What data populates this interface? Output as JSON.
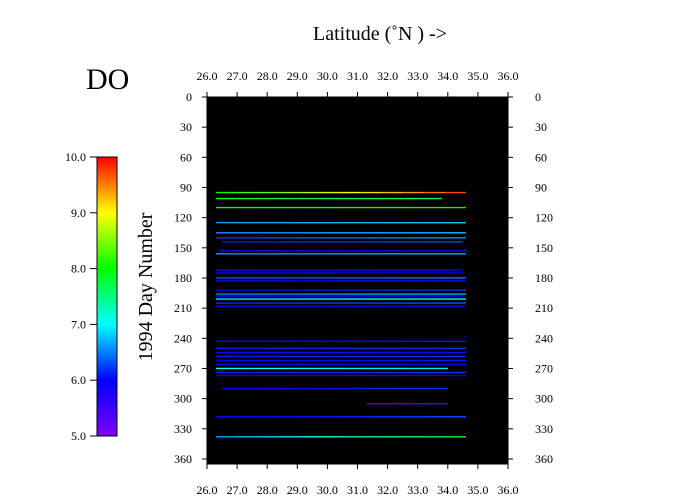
{
  "chart_data": {
    "type": "line",
    "title": "DO",
    "xlabel": "Latitude  (˚N )  ->",
    "ylabel": "1994  Day Number",
    "xlim": [
      26.0,
      36.0
    ],
    "ylim": [
      0,
      365
    ],
    "y_reversed": true,
    "background": "#000000",
    "xticks": [
      "26.0",
      "27.0",
      "28.0",
      "29.0",
      "30.0",
      "31.0",
      "32.0",
      "33.0",
      "34.0",
      "35.0",
      "36.0"
    ],
    "yticks": [
      "0",
      "30",
      "60",
      "90",
      "120",
      "150",
      "180",
      "210",
      "240",
      "270",
      "300",
      "330",
      "360"
    ],
    "colorbar": {
      "label": "DO",
      "range": [
        5.0,
        10.0
      ],
      "ticks": [
        "5.0",
        "6.0",
        "7.0",
        "8.0",
        "9.0",
        "10.0"
      ],
      "colormap": [
        "#8000ff",
        "#0000ff",
        "#00ffff",
        "#00ff00",
        "#ffff00",
        "#ff0000"
      ]
    },
    "series": [
      {
        "day": 95,
        "x_start": 26.3,
        "x_end": 34.6,
        "do_start": 8.0,
        "do_end": 9.8
      },
      {
        "day": 101,
        "x_start": 26.3,
        "x_end": 33.8,
        "do_start": 7.8,
        "do_end": 7.6
      },
      {
        "day": 110,
        "x_start": 26.3,
        "x_end": 34.6,
        "do_start": 7.9,
        "do_end": 8.0
      },
      {
        "day": 125,
        "x_start": 26.3,
        "x_end": 34.6,
        "do_start": 6.6,
        "do_end": 6.8
      },
      {
        "day": 135,
        "x_start": 26.3,
        "x_end": 34.6,
        "do_start": 6.5,
        "do_end": 6.7
      },
      {
        "day": 140,
        "x_start": 26.3,
        "x_end": 34.6,
        "do_start": 6.2,
        "do_end": 6.6
      },
      {
        "day": 144,
        "x_start": 26.5,
        "x_end": 34.5,
        "do_start": 6.1,
        "do_end": 6.3
      },
      {
        "day": 153,
        "x_start": 26.4,
        "x_end": 34.6,
        "do_start": 5.7,
        "do_end": 5.7
      },
      {
        "day": 156,
        "x_start": 26.3,
        "x_end": 34.6,
        "do_start": 6.6,
        "do_end": 6.7
      },
      {
        "day": 172,
        "x_start": 26.3,
        "x_end": 34.5,
        "do_start": 5.8,
        "do_end": 5.9
      },
      {
        "day": 175,
        "x_start": 26.3,
        "x_end": 34.5,
        "do_start": 5.9,
        "do_end": 6.0
      },
      {
        "day": 180,
        "x_start": 26.3,
        "x_end": 34.6,
        "do_start": 6.3,
        "do_end": 6.5
      },
      {
        "day": 183,
        "x_start": 26.3,
        "x_end": 34.6,
        "do_start": 5.8,
        "do_end": 5.9
      },
      {
        "day": 192,
        "x_start": 26.3,
        "x_end": 34.6,
        "do_start": 6.0,
        "do_end": 6.2
      },
      {
        "day": 196,
        "x_start": 26.3,
        "x_end": 34.6,
        "do_start": 6.5,
        "do_end": 6.7
      },
      {
        "day": 198,
        "x_start": 26.3,
        "x_end": 34.5,
        "do_start": 5.9,
        "do_end": 6.0
      },
      {
        "day": 201,
        "x_start": 26.3,
        "x_end": 34.6,
        "do_start": 6.9,
        "do_end": 7.1
      },
      {
        "day": 205,
        "x_start": 26.3,
        "x_end": 34.6,
        "do_start": 6.1,
        "do_end": 6.3
      },
      {
        "day": 208,
        "x_start": 26.3,
        "x_end": 34.6,
        "do_start": 5.9,
        "do_end": 6.0
      },
      {
        "day": 243,
        "x_start": 26.3,
        "x_end": 34.6,
        "do_start": 5.9,
        "do_end": 6.1
      },
      {
        "day": 250,
        "x_start": 26.3,
        "x_end": 34.6,
        "do_start": 6.1,
        "do_end": 6.2
      },
      {
        "day": 254,
        "x_start": 26.3,
        "x_end": 34.6,
        "do_start": 5.8,
        "do_end": 5.9
      },
      {
        "day": 258,
        "x_start": 26.3,
        "x_end": 34.6,
        "do_start": 6.1,
        "do_end": 6.2
      },
      {
        "day": 262,
        "x_start": 26.3,
        "x_end": 34.6,
        "do_start": 6.0,
        "do_end": 6.1
      },
      {
        "day": 266,
        "x_start": 26.3,
        "x_end": 34.6,
        "do_start": 5.9,
        "do_end": 6.0
      },
      {
        "day": 270,
        "x_start": 26.3,
        "x_end": 34.0,
        "do_start": 7.0,
        "do_end": 6.9
      },
      {
        "day": 274,
        "x_start": 26.3,
        "x_end": 34.6,
        "do_start": 6.1,
        "do_end": 6.2
      },
      {
        "day": 277,
        "x_start": 26.3,
        "x_end": 34.6,
        "do_start": 5.9,
        "do_end": 6.0
      },
      {
        "day": 290,
        "x_start": 26.5,
        "x_end": 34.0,
        "do_start": 6.0,
        "do_end": 6.2
      },
      {
        "day": 305,
        "x_start": 31.3,
        "x_end": 34.0,
        "do_start": 5.3,
        "do_end": 5.4
      },
      {
        "day": 318,
        "x_start": 26.3,
        "x_end": 34.6,
        "do_start": 5.9,
        "do_end": 6.3
      },
      {
        "day": 338,
        "x_start": 26.3,
        "x_end": 34.6,
        "do_start": 6.6,
        "do_end": 7.8
      }
    ]
  }
}
